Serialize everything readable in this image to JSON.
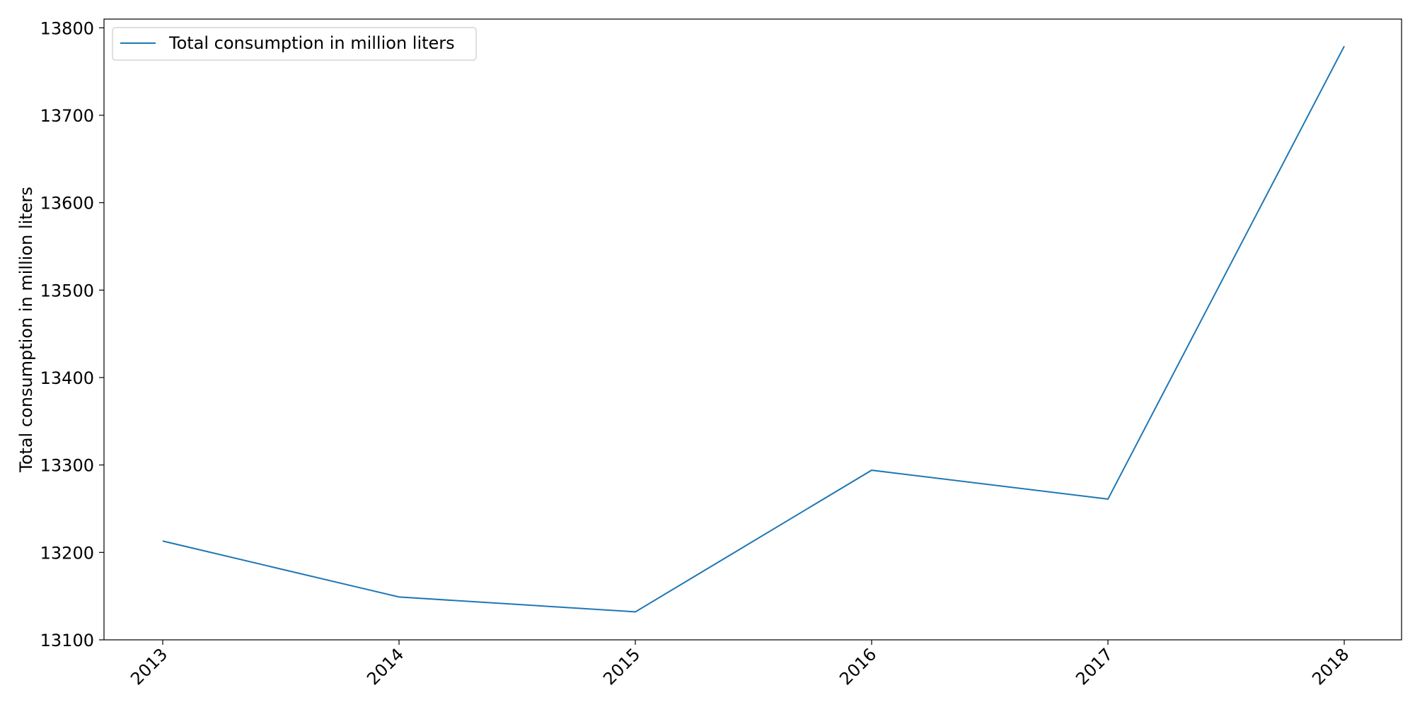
{
  "chart_data": {
    "type": "line",
    "x": [
      "2013",
      "2014",
      "2015",
      "2016",
      "2017",
      "2018"
    ],
    "series": [
      {
        "name": "Total consumption in million liters",
        "values": [
          13213,
          13149,
          13132,
          13294,
          13261,
          13779
        ],
        "color": "#1f77b4"
      }
    ],
    "xlabel": "",
    "ylabel": "Total consumption in million liters",
    "ylim": [
      13100,
      13810
    ],
    "yticks": [
      13100,
      13200,
      13300,
      13400,
      13500,
      13600,
      13700,
      13800
    ],
    "grid": false,
    "legend_position": "top-left"
  }
}
